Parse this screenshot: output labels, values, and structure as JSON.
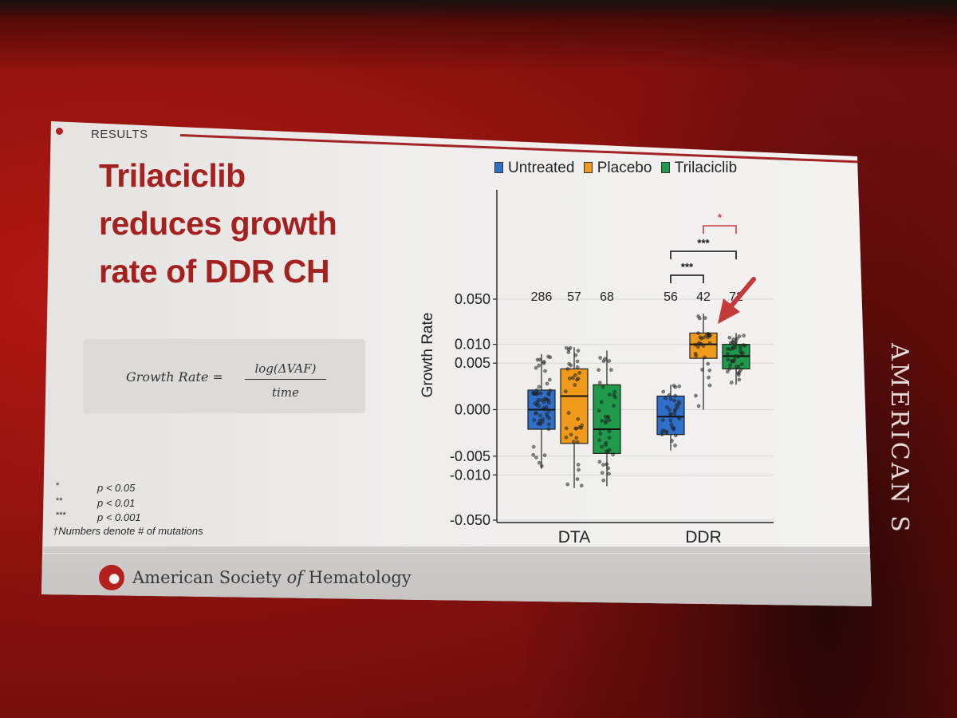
{
  "slide": {
    "section_label": "RESULTS",
    "title_lines": [
      "Trilaciclib",
      "reduces growth",
      "rate of DDR CH"
    ],
    "formula": {
      "lhs": "Growth Rate =",
      "numerator": "log(ΔVAF)",
      "denominator": "time"
    },
    "significance_legend": [
      {
        "symbol": "*",
        "text": "p < 0.05"
      },
      {
        "symbol": "**",
        "text": "p < 0.01"
      },
      {
        "symbol": "***",
        "text": "p < 0.001"
      }
    ],
    "footnote": "†Numbers denote # of mutations",
    "footer": {
      "society_prefix": "American Society ",
      "society_of": "of",
      "society_suffix": " Hematology"
    },
    "side_text": "AMERICAN S",
    "colors": {
      "title": "#a3211f",
      "untreated": "#2e6fc9",
      "placebo": "#f09a1c",
      "trilaciclib": "#1f9a4a",
      "significance_red": "#d33b3b"
    }
  },
  "chart_data": {
    "type": "box",
    "ylabel": "Growth Rate",
    "xlabel": "",
    "categories": [
      "DTA",
      "DDR"
    ],
    "y_ticks": [
      "0.050",
      "0.010",
      "0.005",
      "0.000",
      "-0.005",
      "-0.010",
      "-0.050"
    ],
    "y_tick_values": [
      0.05,
      0.01,
      0.005,
      0.0,
      -0.005,
      -0.01,
      -0.05
    ],
    "y_scale": "pseudo-log",
    "ylim": [
      -0.05,
      0.05
    ],
    "grid": true,
    "legend_placement": "top",
    "legend": [
      "Untreated",
      "Placebo",
      "Trilaciclib"
    ],
    "series": [
      {
        "name": "Untreated",
        "color": "#2e6fc9",
        "groups": [
          {
            "category": "DTA",
            "n_label": "286",
            "q1": -0.0015,
            "median": 0.0,
            "q3": 0.0015,
            "whisker_low": -0.008,
            "whisker_high": 0.007
          },
          {
            "category": "DDR",
            "n_label": "56",
            "q1": -0.002,
            "median": -0.0005,
            "q3": 0.001,
            "whisker_low": -0.004,
            "whisker_high": 0.002
          }
        ]
      },
      {
        "name": "Placebo",
        "color": "#f09a1c",
        "groups": [
          {
            "category": "DTA",
            "n_label": "57",
            "q1": -0.003,
            "median": 0.001,
            "q3": 0.004,
            "whisker_low": -0.016,
            "whisker_high": 0.009
          },
          {
            "category": "DDR",
            "n_label": "42",
            "q1": 0.006,
            "median": 0.01,
            "q3": 0.015,
            "whisker_low": 0.0,
            "whisker_high": 0.03
          }
        ]
      },
      {
        "name": "Trilaciclib",
        "color": "#1f9a4a",
        "groups": [
          {
            "category": "DTA",
            "n_label": "68",
            "q1": -0.0045,
            "median": -0.0015,
            "q3": 0.002,
            "whisker_low": -0.015,
            "whisker_high": 0.008
          },
          {
            "category": "DDR",
            "n_label": "72",
            "q1": 0.004,
            "median": 0.0065,
            "q3": 0.01,
            "whisker_low": 0.002,
            "whisker_high": 0.015
          }
        ]
      }
    ],
    "comparisons": [
      {
        "category": "DDR",
        "from": "Untreated",
        "to": "Placebo",
        "label": "***",
        "color": "#111111"
      },
      {
        "category": "DDR",
        "from": "Untreated",
        "to": "Trilaciclib",
        "label": "***",
        "color": "#111111"
      },
      {
        "category": "DDR",
        "from": "Placebo",
        "to": "Trilaciclib",
        "label": "*",
        "color": "#d33b3b"
      }
    ],
    "annotations": [
      {
        "type": "arrow",
        "points_to": "Trilaciclib DDR",
        "color": "#c43a3a"
      }
    ]
  }
}
